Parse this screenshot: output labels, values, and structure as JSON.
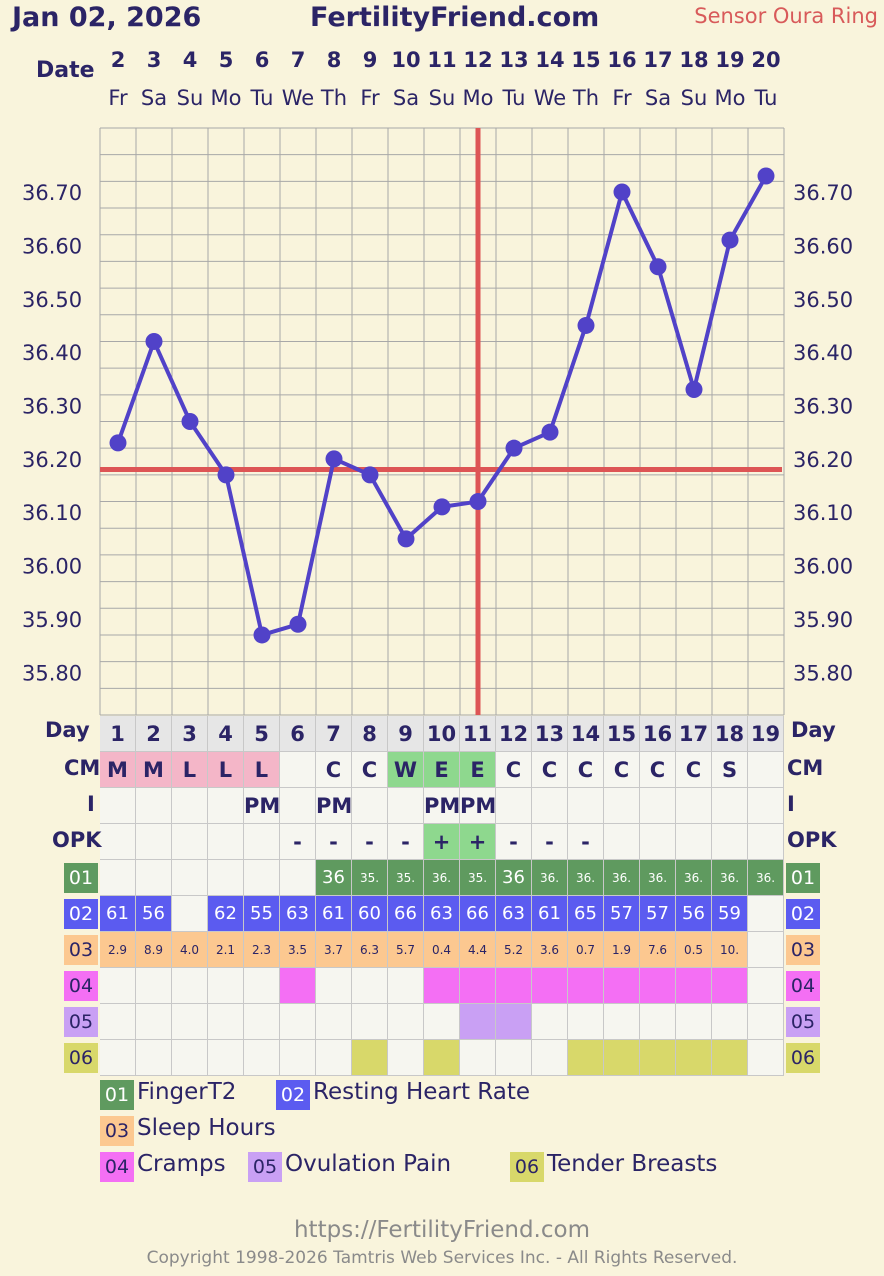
{
  "header": {
    "date": "Jan 02, 2026",
    "site": "FertilityFriend.com",
    "sensor": "Sensor Oura Ring"
  },
  "labels": {
    "date": "Date",
    "day": "Day",
    "cm": "CM",
    "intercourse": "I",
    "opk": "OPK"
  },
  "chart_data": {
    "type": "line",
    "x": [
      1,
      2,
      3,
      4,
      5,
      6,
      7,
      8,
      9,
      10,
      11,
      12,
      13,
      14,
      15,
      16,
      17,
      18,
      19
    ],
    "dates": [
      "2",
      "3",
      "4",
      "5",
      "6",
      "7",
      "8",
      "9",
      "10",
      "11",
      "12",
      "13",
      "14",
      "15",
      "16",
      "17",
      "18",
      "19",
      "20"
    ],
    "weekdays": [
      "Fr",
      "Sa",
      "Su",
      "Mo",
      "Tu",
      "We",
      "Th",
      "Fr",
      "Sa",
      "Su",
      "Mo",
      "Tu",
      "We",
      "Th",
      "Fr",
      "Sa",
      "Su",
      "Mo",
      "Tu"
    ],
    "series": [
      {
        "values": [
          36.23,
          36.42,
          36.27,
          36.17,
          35.87,
          35.89,
          36.2,
          36.17,
          36.05,
          36.11,
          36.12,
          36.22,
          36.25,
          36.45,
          36.7,
          36.56,
          36.33,
          36.61,
          36.73
        ]
      }
    ],
    "yticks": [
      "36.70",
      "36.60",
      "36.50",
      "36.40",
      "36.30",
      "36.20",
      "36.10",
      "36.00",
      "35.90",
      "35.80"
    ],
    "ylim": [
      35.72,
      36.82
    ],
    "coverline": 36.18,
    "ovulation_day": 11,
    "grid": true,
    "line_color": "#5142c8",
    "coverline_color": "#dd5555"
  },
  "days": [
    "1",
    "2",
    "3",
    "4",
    "5",
    "6",
    "7",
    "8",
    "9",
    "10",
    "11",
    "12",
    "13",
    "14",
    "15",
    "16",
    "17",
    "18",
    "19"
  ],
  "cm": [
    "M",
    "M",
    "L",
    "L",
    "L",
    "",
    "C",
    "C",
    "W",
    "E",
    "E",
    "C",
    "C",
    "C",
    "C",
    "C",
    "C",
    "S",
    ""
  ],
  "intercourse": [
    "",
    "",
    "",
    "",
    "PM",
    "",
    "PM",
    "",
    "",
    "PM",
    "PM",
    "",
    "",
    "",
    "",
    "",
    "",
    "",
    ""
  ],
  "opk": [
    "",
    "",
    "",
    "",
    "",
    "-",
    "-",
    "-",
    "-",
    "+",
    "+",
    "-",
    "-",
    "-",
    "",
    "",
    "",
    "",
    ""
  ],
  "custom_rows": [
    {
      "code": "01",
      "color": "#5f9a5f",
      "values": [
        "",
        "",
        "",
        "",
        "",
        "",
        "36",
        "35.",
        "35.",
        "36.",
        "35.",
        "36",
        "36.",
        "36.",
        "36.",
        "36.",
        "36.",
        "36.",
        "36."
      ]
    },
    {
      "code": "02",
      "color": "#5b5bf0",
      "values": [
        "61",
        "56",
        "",
        "62",
        "55",
        "63",
        "61",
        "60",
        "66",
        "63",
        "66",
        "63",
        "61",
        "65",
        "57",
        "57",
        "56",
        "59",
        ""
      ]
    },
    {
      "code": "03",
      "color": "#fcc890",
      "values": [
        "2.9",
        "8.9",
        "4.0",
        "2.1",
        "2.3",
        "3.5",
        "3.7",
        "6.3",
        "5.7",
        "0.4",
        "4.4",
        "5.2",
        "3.6",
        "0.7",
        "1.9",
        "7.6",
        "0.5",
        "10.",
        ""
      ]
    },
    {
      "code": "04",
      "color": "#f46ff4",
      "flags": [
        0,
        0,
        0,
        0,
        0,
        1,
        0,
        0,
        0,
        1,
        1,
        1,
        1,
        1,
        1,
        1,
        1,
        1,
        0
      ]
    },
    {
      "code": "05",
      "color": "#c9a0f4",
      "flags": [
        0,
        0,
        0,
        0,
        0,
        0,
        0,
        0,
        0,
        0,
        1,
        1,
        0,
        0,
        0,
        0,
        0,
        0,
        0
      ]
    },
    {
      "code": "06",
      "color": "#d8d86a",
      "flags": [
        0,
        0,
        0,
        0,
        0,
        0,
        0,
        1,
        0,
        1,
        0,
        0,
        0,
        1,
        1,
        1,
        1,
        1,
        0
      ]
    }
  ],
  "legend": [
    {
      "code": "01",
      "label": "FingerT2",
      "color": "#5f9a5f",
      "text_color": "#ffffff"
    },
    {
      "code": "02",
      "label": "Resting Heart Rate",
      "color": "#5b5bf0",
      "text_color": "#ffffff"
    },
    {
      "code": "03",
      "label": "Sleep Hours",
      "color": "#fcc890",
      "text_color": "#2b2466"
    },
    {
      "code": "04",
      "label": "Cramps",
      "color": "#f46ff4",
      "text_color": "#2b2466"
    },
    {
      "code": "05",
      "label": "Ovulation Pain",
      "color": "#c9a0f4",
      "text_color": "#2b2466"
    },
    {
      "code": "06",
      "label": "Tender Breasts",
      "color": "#d8d86a",
      "text_color": "#2b2466"
    }
  ],
  "footer": {
    "url": "https://FertilityFriend.com",
    "copyright": "Copyright 1998-2026 Tamtris Web Services Inc. - All Rights Reserved."
  }
}
